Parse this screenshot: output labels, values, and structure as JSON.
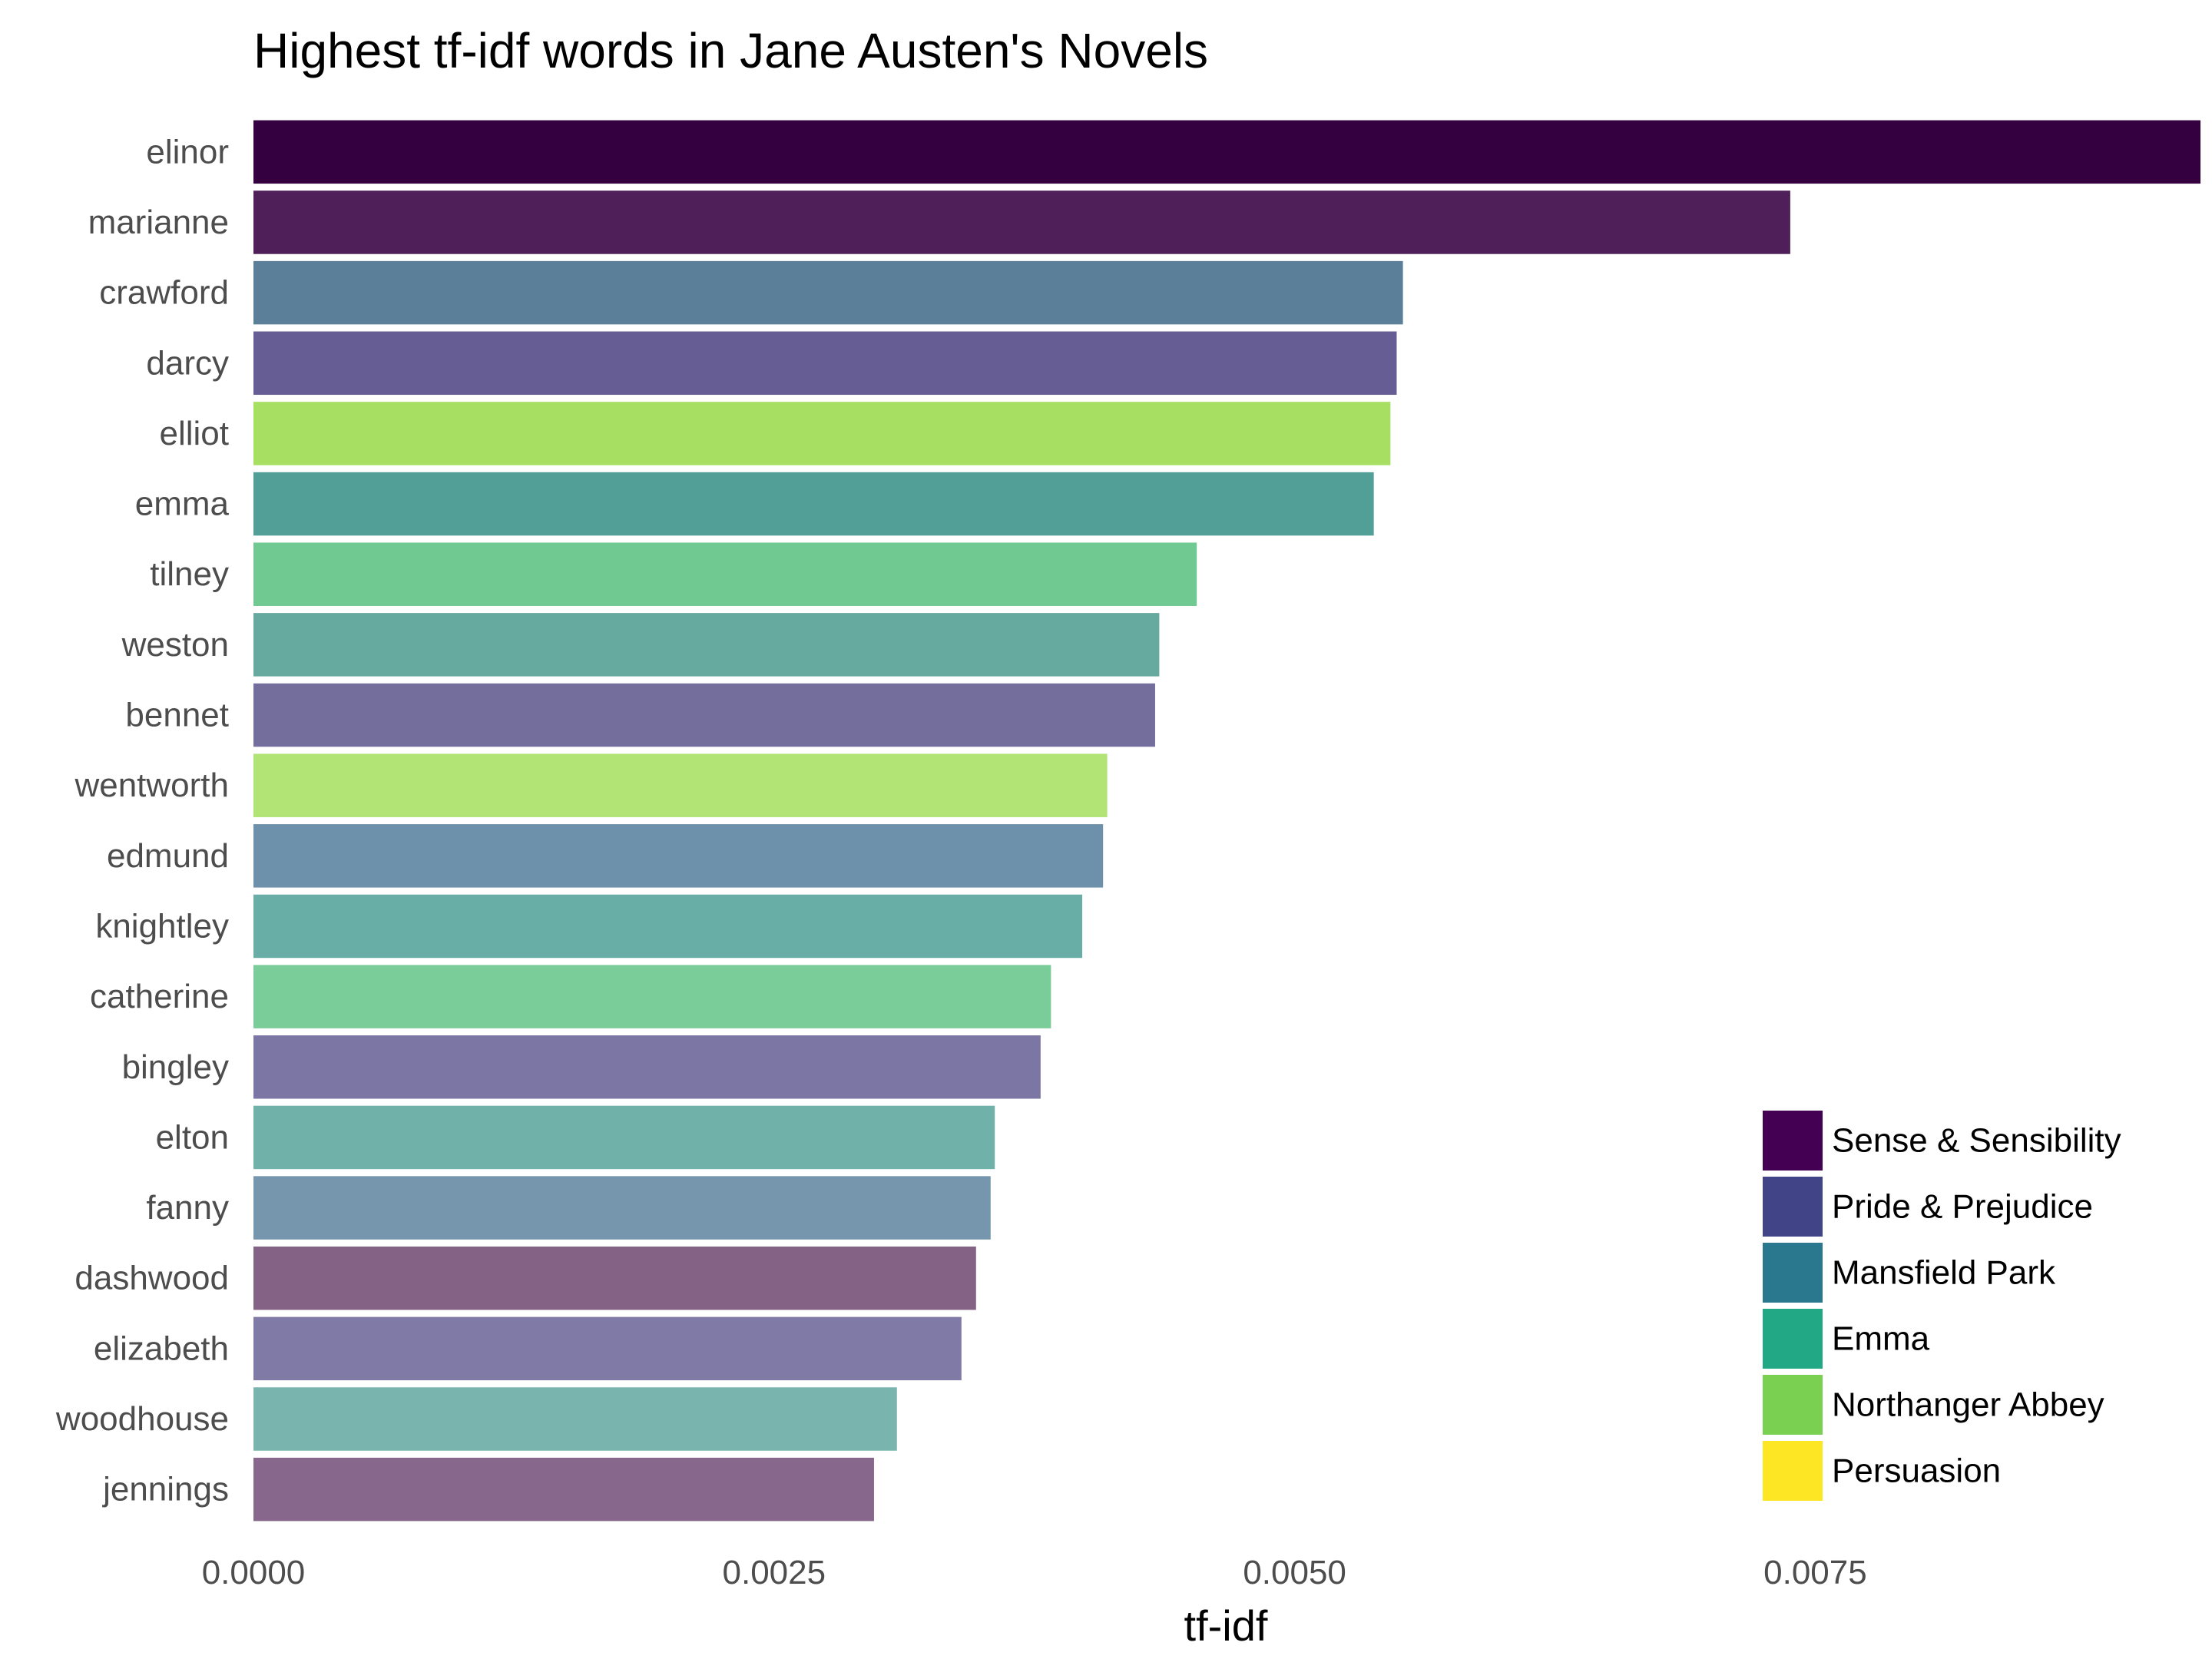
{
  "chart_data": {
    "type": "bar",
    "orientation": "horizontal",
    "title": "Highest tf-idf words in Jane Austen's Novels",
    "xlabel": "tf-idf",
    "ylabel": "",
    "xlim": [
      0,
      0.00935
    ],
    "x_ticks": [
      "0.0000",
      "0.0025",
      "0.0050",
      "0.0075"
    ],
    "x_tick_values": [
      0,
      0.0025,
      0.005,
      0.0075
    ],
    "grid": false,
    "legend_position": "bottom-right",
    "books": [
      {
        "name": "Sense & Sensibility",
        "color": "#440154"
      },
      {
        "name": "Pride & Prejudice",
        "color": "#414487"
      },
      {
        "name": "Mansfield Park",
        "color": "#2A788E"
      },
      {
        "name": "Emma",
        "color": "#22A884"
      },
      {
        "name": "Northanger Abbey",
        "color": "#7AD151"
      },
      {
        "name": "Persuasion",
        "color": "#FDE725"
      }
    ],
    "bars": [
      {
        "word": "elinor",
        "value": 0.00935,
        "book": "Sense & Sensibility",
        "color": "#35003f"
      },
      {
        "word": "marianne",
        "value": 0.00738,
        "book": "Sense & Sensibility",
        "color": "#4e1f58"
      },
      {
        "word": "crawford",
        "value": 0.00552,
        "book": "Mansfield Park",
        "color": "#5b7f99"
      },
      {
        "word": "darcy",
        "value": 0.00549,
        "book": "Pride & Prejudice",
        "color": "#655d93"
      },
      {
        "word": "elliot",
        "value": 0.00546,
        "book": "Persuasion",
        "color": "#a6df62"
      },
      {
        "word": "emma",
        "value": 0.00538,
        "book": "Emma",
        "color": "#529f98"
      },
      {
        "word": "tilney",
        "value": 0.00453,
        "book": "Northanger Abbey",
        "color": "#70c991"
      },
      {
        "word": "weston",
        "value": 0.00435,
        "book": "Emma",
        "color": "#65a99f"
      },
      {
        "word": "bennet",
        "value": 0.00433,
        "book": "Pride & Prejudice",
        "color": "#736e9c"
      },
      {
        "word": "wentworth",
        "value": 0.0041,
        "book": "Persuasion",
        "color": "#b1e375"
      },
      {
        "word": "edmund",
        "value": 0.00408,
        "book": "Mansfield Park",
        "color": "#6d91aa"
      },
      {
        "word": "knightley",
        "value": 0.00398,
        "book": "Emma",
        "color": "#68ada6"
      },
      {
        "word": "catherine",
        "value": 0.00383,
        "book": "Northanger Abbey",
        "color": "#7acd98"
      },
      {
        "word": "bingley",
        "value": 0.00378,
        "book": "Pride & Prejudice",
        "color": "#7b76a3"
      },
      {
        "word": "elton",
        "value": 0.00356,
        "book": "Emma",
        "color": "#70b1aa"
      },
      {
        "word": "fanny",
        "value": 0.00354,
        "book": "Mansfield Park",
        "color": "#7596ad"
      },
      {
        "word": "dashwood",
        "value": 0.00347,
        "book": "Sense & Sensibility",
        "color": "#846286"
      },
      {
        "word": "elizabeth",
        "value": 0.0034,
        "book": "Pride & Prejudice",
        "color": "#807ba6"
      },
      {
        "word": "woodhouse",
        "value": 0.00309,
        "book": "Emma",
        "color": "#79b4ae"
      },
      {
        "word": "jennings",
        "value": 0.00298,
        "book": "Sense & Sensibility",
        "color": "#87678b"
      }
    ]
  }
}
